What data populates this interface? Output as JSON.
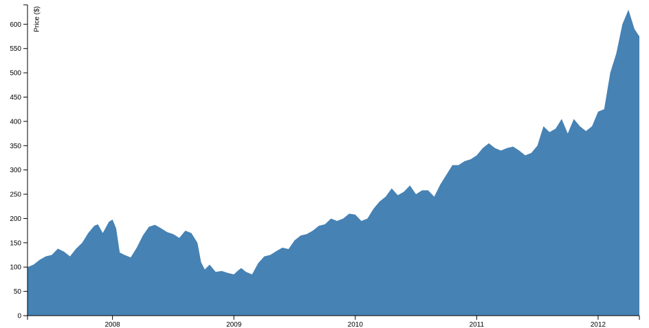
{
  "chart_data": {
    "type": "area",
    "y_label": "Price ($)",
    "color": "#4682b4",
    "x": [
      2007.3,
      2007.35,
      2007.4,
      2007.45,
      2007.5,
      2007.55,
      2007.6,
      2007.65,
      2007.7,
      2007.75,
      2007.8,
      2007.85,
      2007.88,
      2007.92,
      2007.97,
      2008.0,
      2008.03,
      2008.06,
      2008.1,
      2008.15,
      2008.2,
      2008.25,
      2008.3,
      2008.35,
      2008.4,
      2008.45,
      2008.5,
      2008.55,
      2008.6,
      2008.65,
      2008.7,
      2008.73,
      2008.76,
      2008.8,
      2008.85,
      2008.9,
      2008.95,
      2009.0,
      2009.03,
      2009.06,
      2009.1,
      2009.15,
      2009.2,
      2009.25,
      2009.3,
      2009.35,
      2009.4,
      2009.45,
      2009.5,
      2009.55,
      2009.6,
      2009.65,
      2009.7,
      2009.75,
      2009.8,
      2009.85,
      2009.9,
      2009.95,
      2010.0,
      2010.05,
      2010.1,
      2010.15,
      2010.2,
      2010.25,
      2010.3,
      2010.35,
      2010.4,
      2010.45,
      2010.5,
      2010.55,
      2010.6,
      2010.65,
      2010.7,
      2010.75,
      2010.8,
      2010.85,
      2010.9,
      2010.95,
      2011.0,
      2011.05,
      2011.1,
      2011.15,
      2011.2,
      2011.25,
      2011.3,
      2011.35,
      2011.4,
      2011.45,
      2011.5,
      2011.55,
      2011.6,
      2011.65,
      2011.7,
      2011.75,
      2011.8,
      2011.85,
      2011.9,
      2011.95,
      2012.0,
      2012.05,
      2012.1,
      2012.15,
      2012.2,
      2012.25,
      2012.3,
      2012.34
    ],
    "values": [
      100,
      105,
      115,
      122,
      125,
      138,
      132,
      122,
      138,
      150,
      170,
      185,
      188,
      170,
      193,
      198,
      180,
      130,
      125,
      120,
      140,
      165,
      183,
      187,
      180,
      172,
      168,
      160,
      175,
      170,
      150,
      110,
      95,
      105,
      90,
      92,
      88,
      85,
      92,
      98,
      90,
      85,
      108,
      122,
      125,
      133,
      140,
      137,
      155,
      165,
      168,
      175,
      185,
      188,
      200,
      195,
      200,
      210,
      208,
      195,
      200,
      220,
      235,
      245,
      262,
      248,
      255,
      268,
      250,
      258,
      258,
      245,
      270,
      290,
      310,
      310,
      318,
      322,
      330,
      345,
      355,
      345,
      340,
      345,
      348,
      340,
      330,
      335,
      350,
      390,
      378,
      385,
      405,
      375,
      405,
      390,
      380,
      390,
      420,
      425,
      500,
      540,
      600,
      630,
      590,
      575
    ],
    "xlim": [
      2007.3,
      2012.34
    ],
    "xticks": [
      2008,
      2009,
      2010,
      2011,
      2012
    ],
    "ylim": [
      0,
      640
    ],
    "yticks": [
      0,
      50,
      100,
      150,
      200,
      250,
      300,
      350,
      400,
      450,
      500,
      550,
      600
    ]
  }
}
